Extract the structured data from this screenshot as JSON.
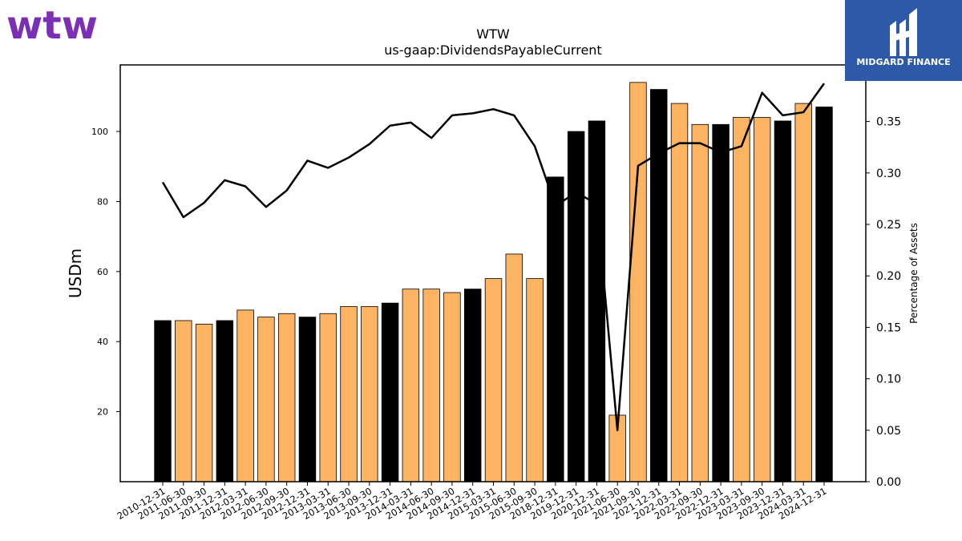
{
  "logos": {
    "left_text": "wtw",
    "left_color": "#7b2fb5",
    "right_text": "MIDGARD FINANCE",
    "right_color": "#2d5aa8"
  },
  "chart_data": {
    "type": "bar",
    "title": "WTW",
    "subtitle": "us-gaap:DividendsPayableCurrent",
    "ylabel": "USDm",
    "y2label": "Percentage of Assets",
    "ylim": [
      0,
      119
    ],
    "y2lim": [
      0,
      0.405
    ],
    "yticks": [
      20,
      40,
      60,
      80,
      100
    ],
    "y2ticks": [
      "0.00",
      "0.05",
      "0.10",
      "0.15",
      "0.20",
      "0.25",
      "0.30",
      "0.35"
    ],
    "colors": {
      "q4": "#000000",
      "other": "#fdb462",
      "line": "#000000"
    },
    "categories": [
      "2010-12-31",
      "2011-06-30",
      "2011-09-30",
      "2011-12-31",
      "2012-03-31",
      "2012-06-30",
      "2012-09-30",
      "2012-12-31",
      "2013-03-31",
      "2013-06-30",
      "2013-09-30",
      "2013-12-31",
      "2014-03-31",
      "2014-06-30",
      "2014-09-30",
      "2014-12-31",
      "2015-03-31",
      "2015-06-30",
      "2015-09-30",
      "2018-12-31",
      "2019-12-31",
      "2020-12-31",
      "2021-06-30",
      "2021-09-30",
      "2021-12-31",
      "2022-03-31",
      "2022-09-30",
      "2022-12-31",
      "2023-03-31",
      "2023-09-30",
      "2023-12-31",
      "2024-03-31",
      "2024-12-31"
    ],
    "series": [
      {
        "name": "",
        "kind": "bar",
        "axis": "left",
        "values": [
          46,
          46,
          45,
          46,
          49,
          47,
          48,
          47,
          48,
          50,
          50,
          51,
          55,
          55,
          54,
          55,
          58,
          65,
          58,
          87,
          100,
          103,
          19,
          114,
          112,
          108,
          102,
          102,
          104,
          104,
          103,
          108,
          107
        ]
      },
      {
        "name": "",
        "kind": "line",
        "axis": "right",
        "values": [
          0.291,
          0.257,
          0.271,
          0.293,
          0.287,
          0.267,
          0.283,
          0.312,
          0.305,
          0.315,
          0.328,
          0.346,
          0.349,
          0.334,
          0.356,
          0.358,
          0.362,
          0.356,
          0.326,
          0.268,
          0.281,
          0.27,
          0.05,
          0.307,
          0.319,
          0.329,
          0.329,
          0.32,
          0.326,
          0.378,
          0.356,
          0.359,
          0.387
        ]
      }
    ],
    "grid": false,
    "legend": "none"
  }
}
